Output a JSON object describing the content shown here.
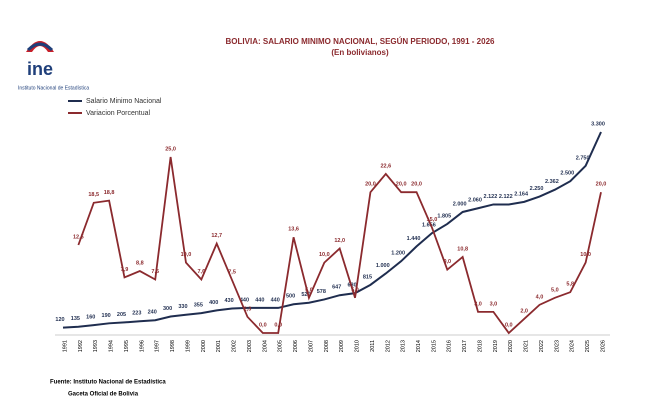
{
  "logo": {
    "name": "ine",
    "subtitle": "Instituto Nacional de Estadística"
  },
  "chart_data": {
    "type": "line",
    "title": "BOLIVIA: SALARIO MINIMO NACIONAL, SEGÚN PERIODO, 1991 - 2026",
    "subtitle": "(En bolivianos)",
    "categories": [
      "1991",
      "1992",
      "1993",
      "1994",
      "1995",
      "1996",
      "1997",
      "1998",
      "1999",
      "2000",
      "2001",
      "2002",
      "2003",
      "2004",
      "2005",
      "2006",
      "2007",
      "2008",
      "2009",
      "2010",
      "2011",
      "2012",
      "2013",
      "2014",
      "2015",
      "2016",
      "2017",
      "2018",
      "2019",
      "2020",
      "2021",
      "2022",
      "2023",
      "2024",
      "2025",
      "2026"
    ],
    "legend": "top-left",
    "series": [
      {
        "name": "Salario Minimo Nacional",
        "color": "#1f2d4f",
        "values": [
          120,
          135,
          160,
          190,
          205,
          223,
          240,
          300,
          330,
          355,
          400,
          430,
          440,
          440,
          440,
          500,
          525,
          578,
          647,
          680,
          815,
          1000,
          1200,
          1440,
          1656,
          1805,
          2000,
          2060,
          2122,
          2122,
          2164,
          2250,
          2362,
          2500,
          2750,
          3300
        ],
        "value_labels": [
          "120",
          "135",
          "160",
          "190",
          "205",
          "223",
          "240",
          "300",
          "330",
          "355",
          "400",
          "430",
          "440",
          "440",
          "440",
          "500",
          "525",
          "578",
          "647",
          "680",
          "815",
          "1.000",
          "1.200",
          "1.440",
          "1.656",
          "1.805",
          "2.000",
          "2.060",
          "2.122",
          "2.122",
          "2.164",
          "2.250",
          "2.362",
          "2.500",
          "2.750",
          "3.300"
        ]
      },
      {
        "name": "Variacion Porcentual",
        "color": "#8b2a2e",
        "axis": "y2",
        "values": [
          null,
          12.5,
          18.5,
          18.8,
          7.9,
          8.8,
          7.6,
          25.0,
          10.0,
          7.6,
          12.7,
          7.5,
          2.3,
          0.0,
          0.0,
          13.6,
          5.0,
          10.0,
          12.0,
          5.0,
          20.0,
          22.6,
          20.0,
          20.0,
          15.0,
          9.0,
          10.8,
          3.0,
          3.0,
          0.0,
          2.0,
          4.0,
          5.0,
          5.8,
          10.0,
          20.0
        ],
        "value_labels": [
          null,
          "12,5",
          "18,5",
          "18,8",
          "7,9",
          "8,8",
          "7,6",
          "25,0",
          "10,0",
          "7,6",
          "12,7",
          "7,5",
          "2,3",
          "0,0",
          "0,0",
          "13,6",
          "5,0",
          "10,0",
          "12,0",
          "5,0",
          "20,0",
          "22,6",
          "20,0",
          "20,0",
          "15,0",
          "9,0",
          "10,8",
          "3,0",
          "3,0",
          "0,0",
          "2,0",
          "4,0",
          "5,0",
          "5,8",
          "10,0",
          "20,0"
        ]
      }
    ],
    "notes": [
      "Fuente: Instituto Nacional de Estadística",
      "Gaceta Oficial de Bolivia"
    ]
  }
}
